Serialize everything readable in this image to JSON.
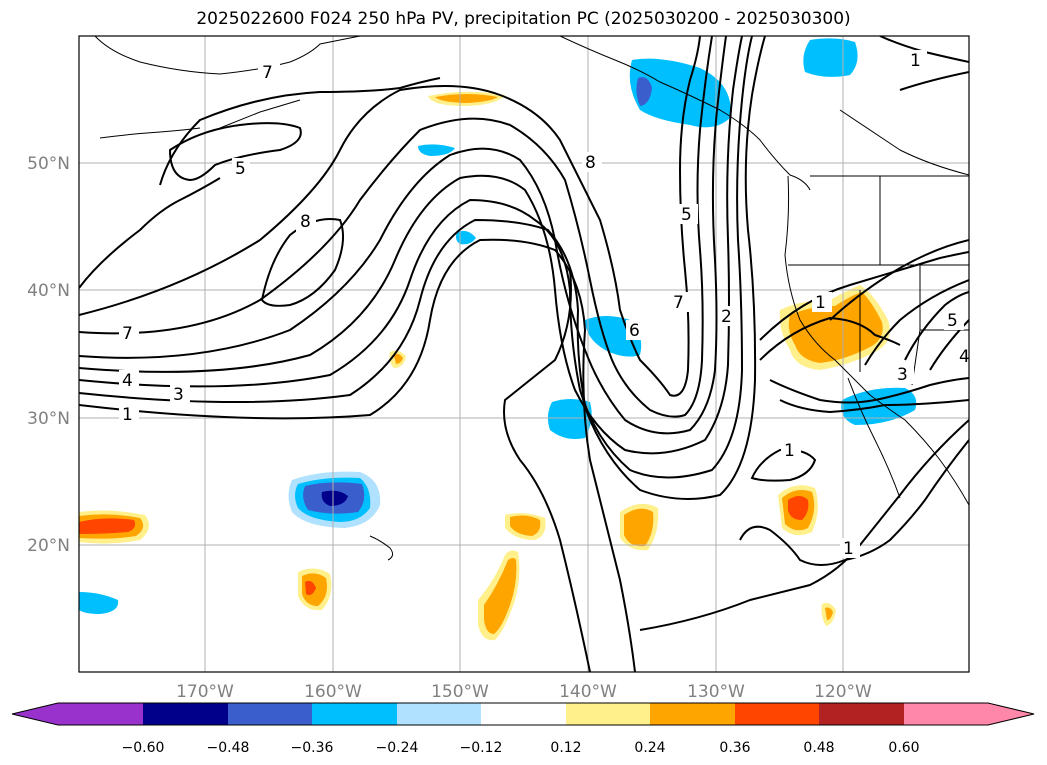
{
  "title": "2025022600 F024 250 hPa PV, precipitation PC (2025030200 - 2025030300)",
  "lat_labels": [
    "50°N",
    "40°N",
    "30°N",
    "20°N"
  ],
  "lon_labels": [
    "170°W",
    "160°W",
    "150°W",
    "140°W",
    "130°W",
    "120°W"
  ],
  "contour_labels": [
    "7",
    "5",
    "8",
    "7",
    "4",
    "3",
    "1",
    "8",
    "5",
    "7",
    "6",
    "2",
    "1",
    "1",
    "5",
    "3",
    "4",
    "1",
    "1"
  ],
  "colorbar": {
    "ticks": [
      "−0.60",
      "−0.48",
      "−0.36",
      "−0.24",
      "−0.12",
      "0.12",
      "0.24",
      "0.36",
      "0.48",
      "0.60"
    ],
    "colors": [
      "#9932cc",
      "#00008b",
      "#3a5fcd",
      "#00bfff",
      "#b0e2ff",
      "#ffffff",
      "#fff08c",
      "#ffa500",
      "#ff4500",
      "#b22222",
      "#ff88aa",
      "#ff88aa"
    ]
  },
  "colors": {
    "frame": "#000000",
    "grid": "#b0b0b0",
    "contour": "#000000"
  }
}
